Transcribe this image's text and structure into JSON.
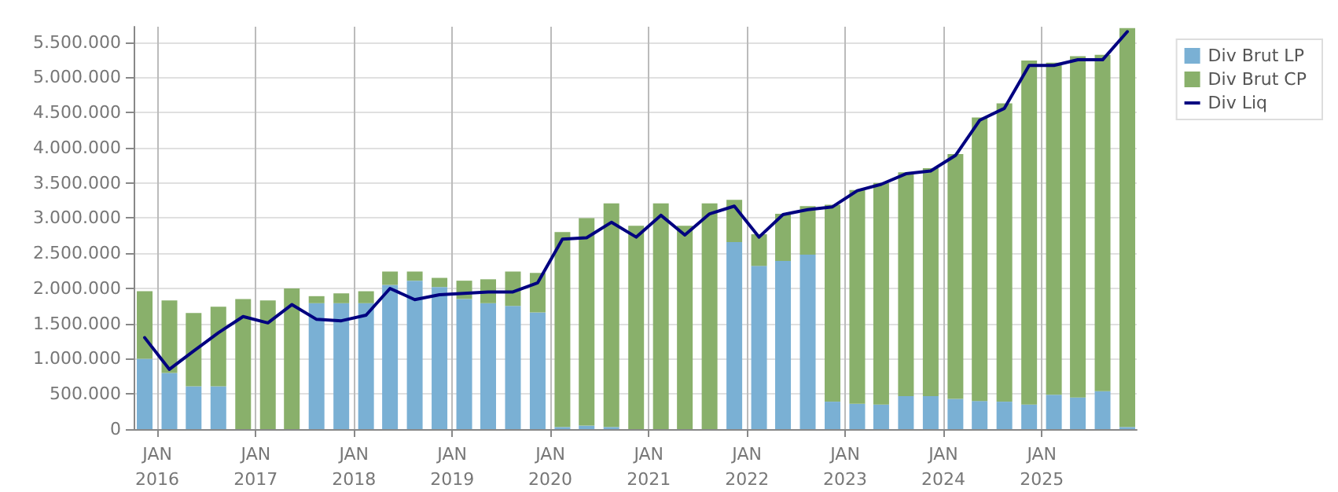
{
  "chart_data": {
    "type": "bar",
    "stacked": true,
    "grid": true,
    "legend": "top right",
    "x": [
      "2015-11-15",
      "2016-02-15",
      "2016-05-15",
      "2016-08-15",
      "2016-11-15",
      "2017-02-15",
      "2017-05-15",
      "2017-08-15",
      "2017-11-15",
      "2018-02-15",
      "2018-05-15",
      "2018-08-15",
      "2018-11-15",
      "2019-02-15",
      "2019-05-15",
      "2019-08-15",
      "2019-11-15",
      "2020-02-15",
      "2020-05-15",
      "2020-08-15",
      "2020-11-15",
      "2021-02-15",
      "2021-05-15",
      "2021-08-15",
      "2021-11-15",
      "2022-02-15",
      "2022-05-15",
      "2022-08-15",
      "2022-11-15",
      "2023-02-15",
      "2023-05-15",
      "2023-08-15",
      "2023-11-15",
      "2024-02-15",
      "2024-05-15",
      "2024-08-15",
      "2024-11-15",
      "2025-02-15",
      "2025-05-15",
      "2025-08-15",
      "2025-11-15"
    ],
    "series": [
      {
        "name": "Div Brut LP",
        "color": "#7ab0d4",
        "values": [
          1000000,
          800000,
          610000,
          610000,
          0,
          0,
          0,
          1790000,
          1790000,
          1790000,
          2050000,
          2110000,
          2020000,
          1850000,
          1790000,
          1750000,
          1660000,
          30000,
          50000,
          30000,
          0,
          0,
          0,
          0,
          2660000,
          2320000,
          2390000,
          2480000,
          390000,
          360000,
          350000,
          470000,
          470000,
          430000,
          400000,
          390000,
          350000,
          490000,
          450000,
          540000,
          30000
        ]
      },
      {
        "name": "Div Brut CP",
        "color": "#89b06b",
        "values": [
          960000,
          1030000,
          1040000,
          1130000,
          1850000,
          1830000,
          2000000,
          100000,
          140000,
          170000,
          190000,
          130000,
          130000,
          260000,
          340000,
          490000,
          560000,
          2770000,
          2950000,
          3180000,
          2890000,
          3210000,
          2890000,
          3210000,
          600000,
          450000,
          670000,
          690000,
          2800000,
          3040000,
          3150000,
          3180000,
          3240000,
          3480000,
          4030000,
          4240000,
          4890000,
          4720000,
          4850000,
          4780000,
          5670000
        ]
      },
      {
        "name": "Div Liq",
        "type": "line",
        "line_style": "solid",
        "color": "#000080",
        "values": [
          1300000,
          850000,
          1110000,
          1370000,
          1600000,
          1510000,
          1770000,
          1560000,
          1540000,
          1620000,
          2000000,
          1840000,
          1910000,
          1930000,
          1950000,
          1950000,
          2080000,
          2700000,
          2720000,
          2940000,
          2730000,
          3040000,
          2760000,
          3060000,
          3170000,
          2730000,
          3050000,
          3120000,
          3160000,
          3390000,
          3480000,
          3630000,
          3670000,
          3890000,
          4390000,
          4560000,
          5170000,
          5170000,
          5250000,
          5250000,
          5650000
        ]
      }
    ],
    "xlim": [
      "2015-10-05",
      "2025-12-20"
    ],
    "xticks": [
      {
        "value": "2016-01-01",
        "label": "JAN\n2016"
      },
      {
        "value": "2017-01-01",
        "label": "JAN\n2017"
      },
      {
        "value": "2018-01-01",
        "label": "JAN\n2018"
      },
      {
        "value": "2019-01-01",
        "label": "JAN\n2019"
      },
      {
        "value": "2020-01-01",
        "label": "JAN\n2020"
      },
      {
        "value": "2021-01-01",
        "label": "JAN\n2021"
      },
      {
        "value": "2022-01-01",
        "label": "JAN\n2022"
      },
      {
        "value": "2023-01-01",
        "label": "JAN\n2023"
      },
      {
        "value": "2024-01-01",
        "label": "JAN\n2024"
      },
      {
        "value": "2025-01-01",
        "label": "JAN\n2025"
      }
    ],
    "ylim": [
      0,
      5720000
    ],
    "yticks": [
      {
        "value": 0,
        "label": "0"
      },
      {
        "value": 500000,
        "label": "500.000"
      },
      {
        "value": 1000000,
        "label": "1.000.000"
      },
      {
        "value": 1500000,
        "label": "1.500.000"
      },
      {
        "value": 2000000,
        "label": "2.000.000"
      },
      {
        "value": 2500000,
        "label": "2.500.000"
      },
      {
        "value": 3000000,
        "label": "3.000.000"
      },
      {
        "value": 3500000,
        "label": "3.500.000"
      },
      {
        "value": 4000000,
        "label": "4.000.000"
      },
      {
        "value": 4500000,
        "label": "4.500.000"
      },
      {
        "value": 5000000,
        "label": "5.000.000"
      },
      {
        "value": 5500000,
        "label": "5.500.000"
      }
    ]
  }
}
